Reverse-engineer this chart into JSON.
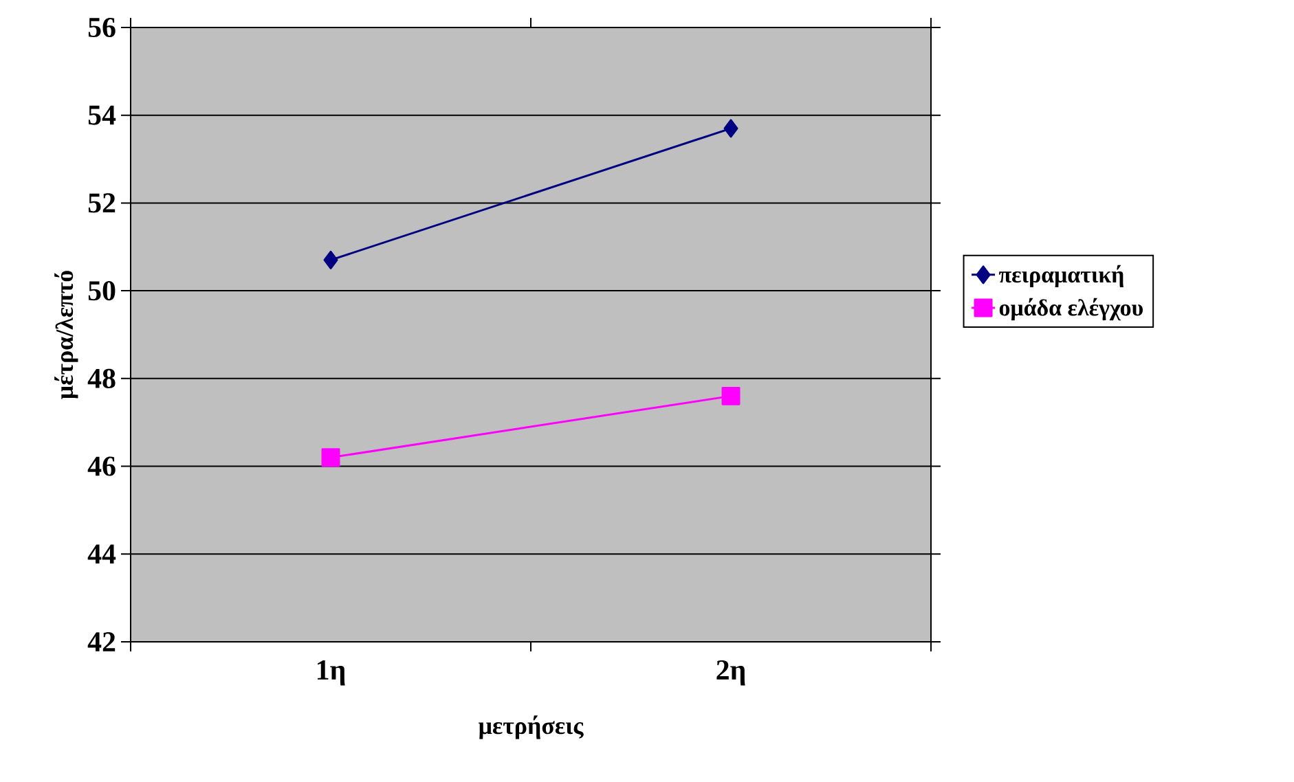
{
  "chart_data": {
    "type": "line",
    "xlabel": "μετρήσεις",
    "ylabel": "μέτρα/λεπτό",
    "categories": [
      "1η",
      "2η"
    ],
    "ylim": [
      42,
      56
    ],
    "yticks": [
      42,
      44,
      46,
      48,
      50,
      52,
      54,
      56
    ],
    "grid": "y",
    "legend": "right",
    "line_style": "solid",
    "series": [
      {
        "name": "πειραματική",
        "color": "#000080",
        "marker": "diamond",
        "values": [
          50.7,
          53.7
        ]
      },
      {
        "name": "ομάδα ελέγχου",
        "color": "#ff00ff",
        "marker": "square",
        "values": [
          46.2,
          47.6
        ]
      }
    ]
  }
}
